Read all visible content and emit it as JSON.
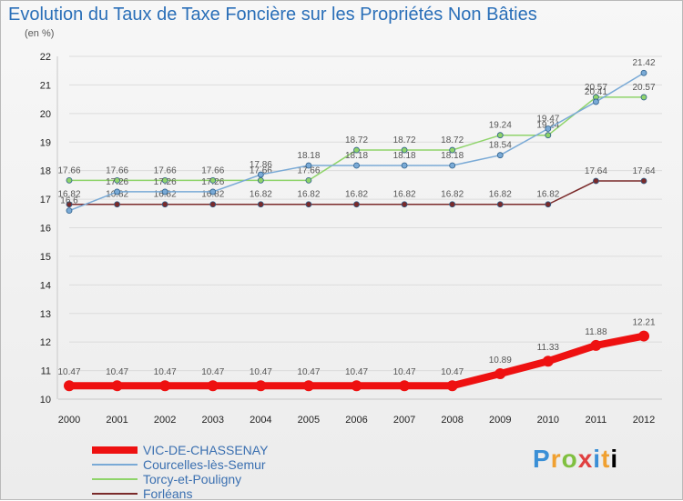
{
  "title": "Evolution du Taux de Taxe Foncière sur les Propriétés Non Bâties",
  "subtitle": "(en %)",
  "logo": [
    "P",
    "r",
    "o",
    "x",
    "i",
    "t",
    "i"
  ],
  "chart_data": {
    "type": "line",
    "title": "Evolution du Taux de Taxe Foncière sur les Propriétés Non Bâties",
    "ylabel": "(en %)",
    "xlabel": "",
    "ylim": [
      10,
      22
    ],
    "yticks": [
      10,
      11,
      12,
      13,
      14,
      15,
      16,
      17,
      18,
      19,
      20,
      21,
      22
    ],
    "categories": [
      "2000",
      "2001",
      "2002",
      "2003",
      "2004",
      "2005",
      "2006",
      "2007",
      "2008",
      "2009",
      "2010",
      "2011",
      "2012"
    ],
    "series": [
      {
        "name": "Forléans",
        "color": "#7a2a2a",
        "width": 1.5,
        "values": [
          16.82,
          16.82,
          16.82,
          16.82,
          16.82,
          16.82,
          16.82,
          16.82,
          16.82,
          16.82,
          16.82,
          17.64,
          17.64
        ],
        "labels": [
          "16.82",
          "16.82",
          "16.82",
          "16.82",
          "16.82",
          "16.82",
          "16.82",
          "16.82",
          "16.82",
          "16.82",
          "16.82",
          "17.64",
          "17.64"
        ]
      },
      {
        "name": "Torcy-et-Pouligny",
        "color": "#8fd46a",
        "width": 1.5,
        "values": [
          17.66,
          17.66,
          17.66,
          17.66,
          17.66,
          17.66,
          18.72,
          18.72,
          18.72,
          19.24,
          19.24,
          20.57,
          20.57
        ],
        "labels": [
          "17.66",
          "17.66",
          "17.66",
          "17.66",
          "17.66",
          "17.66",
          "18.72",
          "18.72",
          "18.72",
          "19.24",
          "19.24",
          "20.57",
          "20.57"
        ]
      },
      {
        "name": "Courcelles-lès-Semur",
        "color": "#7aaad6",
        "width": 1.5,
        "values": [
          16.6,
          17.26,
          17.26,
          17.26,
          17.86,
          18.18,
          18.18,
          18.18,
          18.18,
          18.54,
          19.47,
          20.41,
          21.42
        ],
        "labels": [
          "16.6",
          "17.26",
          "17.26",
          "17.26",
          "17.86",
          "18.18",
          "18.18",
          "18.18",
          "18.18",
          "18.54",
          "19.47",
          "20.41",
          "21.42"
        ]
      },
      {
        "name": "VIC-DE-CHASSENAY",
        "color": "#ee1111",
        "width": 8,
        "values": [
          10.47,
          10.47,
          10.47,
          10.47,
          10.47,
          10.47,
          10.47,
          10.47,
          10.47,
          10.89,
          11.33,
          11.88,
          12.21
        ],
        "labels": [
          "10.47",
          "10.47",
          "10.47",
          "10.47",
          "10.47",
          "10.47",
          "10.47",
          "10.47",
          "10.47",
          "10.89",
          "11.33",
          "11.88",
          "12.21"
        ]
      }
    ],
    "legend_order": [
      "VIC-DE-CHASSENAY",
      "Courcelles-lès-Semur",
      "Torcy-et-Pouligny",
      "Forléans"
    ]
  }
}
